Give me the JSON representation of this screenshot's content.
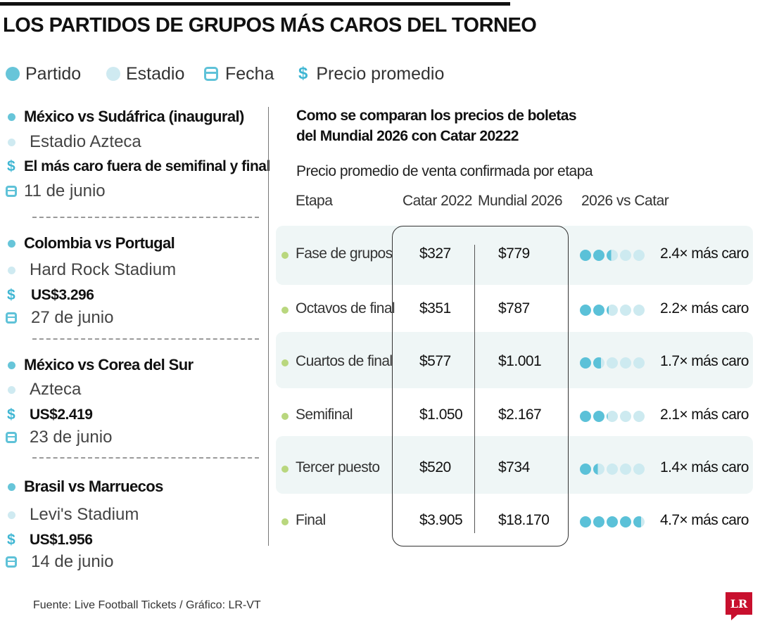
{
  "title": "LOS PARTIDOS DE GRUPOS MÁS CAROS DEL TORNEO",
  "legend": {
    "partido": "Partido",
    "estadio": "Estadio",
    "fecha": "Fecha",
    "precio": "Precio promedio",
    "dollar_symbol": "$"
  },
  "matches": [
    {
      "name": "México vs Sudáfrica (inaugural)",
      "stadium": "Estadio Azteca",
      "price": "El más caro fuera de semifinal y final",
      "date": "11 de junio"
    },
    {
      "name": "Colombia vs Portugal",
      "stadium": "Hard Rock Stadium",
      "price": "US$3.296",
      "date": "27 de junio"
    },
    {
      "name": "México vs Corea del Sur",
      "stadium": "Azteca",
      "price": "US$2.419",
      "date": "23 de junio"
    },
    {
      "name": "Brasil vs Marruecos",
      "stadium": "Levi's Stadium",
      "price": "US$1.956",
      "date": "14 de junio"
    }
  ],
  "chart_data": {
    "type": "table",
    "title": "Como se comparan los precios de boletas del Mundial 2026 con Catar 20222",
    "subtitle": "Precio promedio de venta confirmada por etapa",
    "columns": [
      "Etapa",
      "Catar 2022",
      "Mundial 2026",
      "2026 vs Catar"
    ],
    "rows": [
      {
        "stage": "Fase de grupos",
        "catar": "$327",
        "mundial": "$779",
        "ratio": 2.4,
        "ratio_label": "2.4× más caro"
      },
      {
        "stage": "Octavos de final",
        "catar": "$351",
        "mundial": "$787",
        "ratio": 2.2,
        "ratio_label": "2.2× más caro"
      },
      {
        "stage": "Cuartos de final",
        "catar": "$577",
        "mundial": "$1.001",
        "ratio": 1.7,
        "ratio_label": "1.7× más caro"
      },
      {
        "stage": "Semifinal",
        "catar": "$1.050",
        "mundial": "$2.167",
        "ratio": 2.1,
        "ratio_label": "2.1× más caro"
      },
      {
        "stage": "Tercer puesto",
        "catar": "$520",
        "mundial": "$734",
        "ratio": 1.4,
        "ratio_label": "1.4× más caro"
      },
      {
        "stage": "Final",
        "catar": "$3.905",
        "mundial": "$18.170",
        "ratio": 4.7,
        "ratio_label": "4.7× más caro"
      }
    ],
    "ratio_dots_max": 5,
    "colors": {
      "filled": "#5bc1d8",
      "empty": "#cdeaf0",
      "row_shade": "#eff6f6",
      "bullet": "#b9d77e"
    }
  },
  "footer": "Fuente: Live Football Tickets / Gráfico: LR-VT",
  "logo": "LR"
}
